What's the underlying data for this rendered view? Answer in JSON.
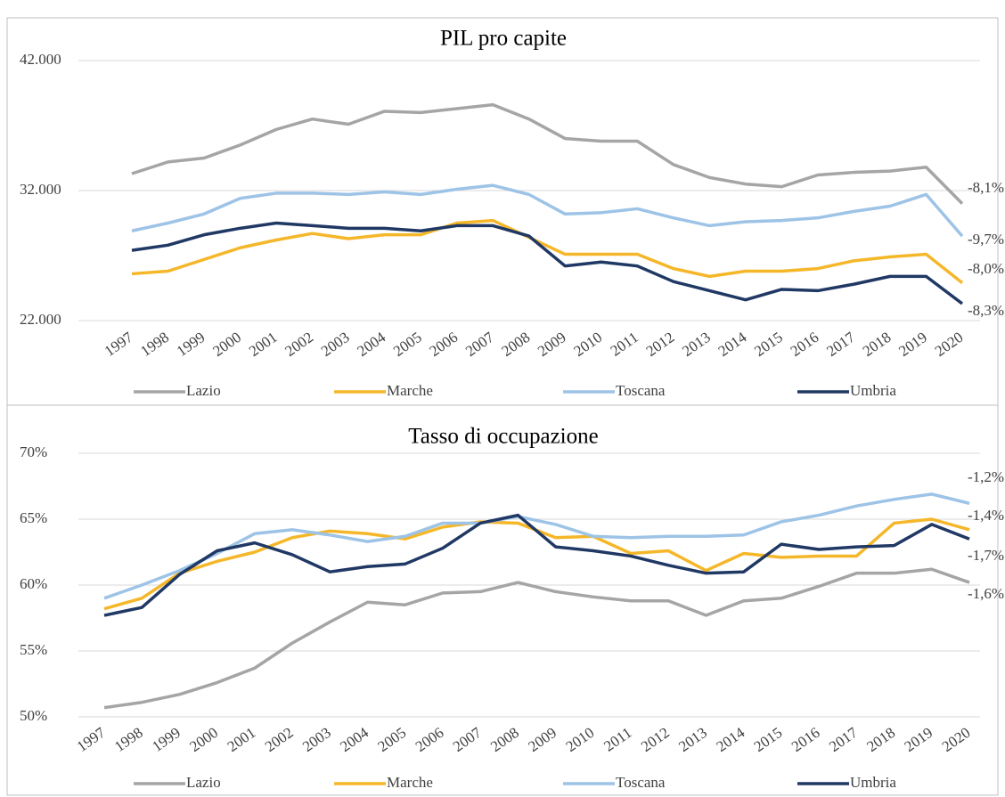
{
  "chart_data": [
    {
      "type": "line",
      "title": "PIL pro capite",
      "categories": [
        "1997",
        "1998",
        "1999",
        "2000",
        "2001",
        "2002",
        "2003",
        "2004",
        "2005",
        "2006",
        "2007",
        "2008",
        "2009",
        "2010",
        "2011",
        "2012",
        "2013",
        "2014",
        "2015",
        "2016",
        "2017",
        "2018",
        "2019",
        "2020"
      ],
      "ylim": [
        22000,
        42000
      ],
      "yticks": [
        {
          "value": 22000,
          "label": "22.000"
        },
        {
          "value": 32000,
          "label": "32.000"
        },
        {
          "value": 42000,
          "label": "42.000"
        }
      ],
      "grid": true,
      "legend": "bottom",
      "series": [
        {
          "name": "Lazio",
          "color": "#a5a5a5",
          "end_label": "-8,1%",
          "values": [
            33300,
            34200,
            34500,
            35500,
            36700,
            37500,
            37100,
            38100,
            38000,
            38300,
            38600,
            37500,
            36000,
            35800,
            35800,
            34000,
            33000,
            32500,
            32300,
            33200,
            33400,
            33500,
            33800,
            31000
          ]
        },
        {
          "name": "Marche",
          "color": "#f5b72a",
          "end_label": "-8,0%",
          "values": [
            25600,
            25800,
            26700,
            27600,
            28200,
            28700,
            28300,
            28600,
            28600,
            29500,
            29700,
            28400,
            27100,
            27100,
            27100,
            26000,
            25400,
            25800,
            25800,
            26000,
            26600,
            26900,
            27100,
            24900
          ]
        },
        {
          "name": "Toscana",
          "color": "#9dc3e6",
          "end_label": "-9,7%",
          "values": [
            28900,
            29500,
            30200,
            31400,
            31800,
            31800,
            31700,
            31900,
            31700,
            32100,
            32400,
            31700,
            30200,
            30300,
            30600,
            29900,
            29300,
            29600,
            29700,
            29900,
            30400,
            30800,
            31700,
            28500
          ]
        },
        {
          "name": "Umbria",
          "color": "#203864",
          "end_label": "-8,3%",
          "values": [
            27400,
            27800,
            28600,
            29100,
            29500,
            29300,
            29100,
            29100,
            28900,
            29300,
            29300,
            28500,
            26200,
            26500,
            26200,
            25000,
            24300,
            23600,
            24400,
            24300,
            24800,
            25400,
            25400,
            23300
          ]
        }
      ]
    },
    {
      "type": "line",
      "title": "Tasso di occupazione",
      "categories": [
        "1997",
        "1998",
        "1999",
        "2000",
        "2001",
        "2002",
        "2003",
        "2004",
        "2005",
        "2006",
        "2007",
        "2008",
        "2009",
        "2010",
        "2011",
        "2012",
        "2013",
        "2014",
        "2015",
        "2016",
        "2017",
        "2018",
        "2019",
        "2020"
      ],
      "ylim": [
        50,
        70
      ],
      "yticks": [
        {
          "value": 50,
          "label": "50%"
        },
        {
          "value": 55,
          "label": "55%"
        },
        {
          "value": 60,
          "label": "60%"
        },
        {
          "value": 65,
          "label": "65%"
        },
        {
          "value": 70,
          "label": "70%"
        }
      ],
      "grid": true,
      "legend": "bottom",
      "series": [
        {
          "name": "Lazio",
          "color": "#a5a5a5",
          "end_label": "-1,6%",
          "values": [
            50.7,
            51.1,
            51.7,
            52.6,
            53.7,
            55.6,
            57.2,
            58.7,
            58.5,
            59.4,
            59.5,
            60.2,
            59.5,
            59.1,
            58.8,
            58.8,
            57.7,
            58.8,
            59.0,
            59.9,
            60.9,
            60.9,
            61.2,
            60.2
          ]
        },
        {
          "name": "Marche",
          "color": "#f5b72a",
          "end_label": "-1,4%",
          "values": [
            58.2,
            59.0,
            60.9,
            61.8,
            62.5,
            63.6,
            64.1,
            63.9,
            63.5,
            64.4,
            64.8,
            64.7,
            63.6,
            63.7,
            62.4,
            62.6,
            61.1,
            62.4,
            62.1,
            62.2,
            62.2,
            64.7,
            65.0,
            64.2
          ]
        },
        {
          "name": "Toscana",
          "color": "#9dc3e6",
          "end_label": "-1,2%",
          "values": [
            59.0,
            60.0,
            61.1,
            62.4,
            63.9,
            64.2,
            63.8,
            63.3,
            63.7,
            64.7,
            64.7,
            65.2,
            64.6,
            63.7,
            63.6,
            63.7,
            63.7,
            63.8,
            64.8,
            65.3,
            66.0,
            66.5,
            66.9,
            66.2
          ]
        },
        {
          "name": "Umbria",
          "color": "#203864",
          "end_label": "-1,7%",
          "values": [
            57.7,
            58.3,
            60.8,
            62.6,
            63.2,
            62.3,
            61.0,
            61.4,
            61.6,
            62.8,
            64.7,
            65.3,
            62.9,
            62.6,
            62.2,
            61.5,
            60.9,
            61.0,
            63.1,
            62.7,
            62.9,
            63.0,
            64.6,
            63.5
          ]
        }
      ]
    }
  ]
}
